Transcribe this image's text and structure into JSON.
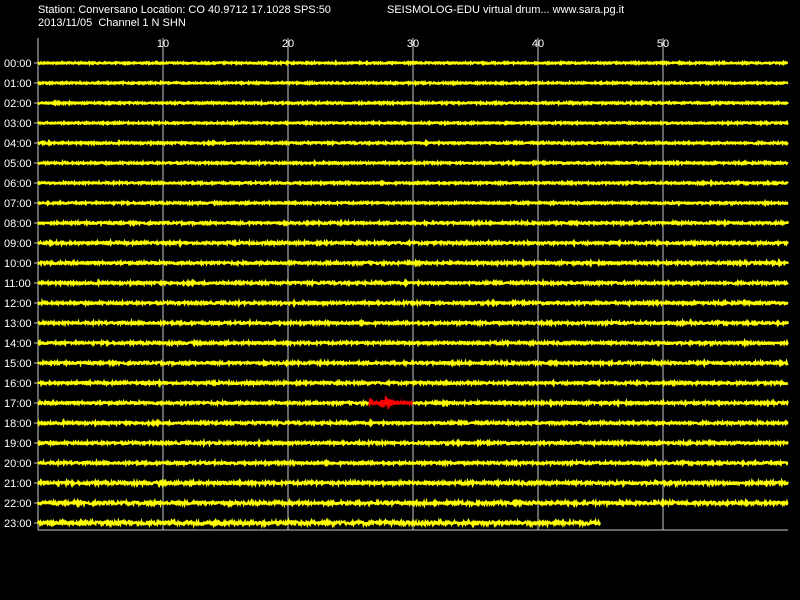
{
  "header": {
    "station_line": "Station: Conversano Location: CO 40.9712 17.1028 SPS:50",
    "app_line": "SEISMOLOG-EDU virtual drum... www.sara.pg.it",
    "date_line": "2013/11/05  Channel 1 N SHN"
  },
  "chart_data": {
    "type": "line",
    "title": "",
    "xlabel": "",
    "ylabel": "",
    "x_unit": "minutes",
    "xlim": [
      0,
      60
    ],
    "x_ticks": [
      10,
      20,
      30,
      40,
      50
    ],
    "grid": true,
    "hours": [
      "00:00",
      "01:00",
      "02:00",
      "03:00",
      "04:00",
      "05:00",
      "06:00",
      "07:00",
      "08:00",
      "09:00",
      "10:00",
      "11:00",
      "12:00",
      "13:00",
      "14:00",
      "15:00",
      "16:00",
      "17:00",
      "18:00",
      "19:00",
      "20:00",
      "21:00",
      "22:00",
      "23:00"
    ],
    "trace_end_minute": [
      60,
      60,
      60,
      60,
      60,
      60,
      60,
      60,
      60,
      60,
      60,
      60,
      60,
      60,
      60,
      60,
      60,
      60,
      60,
      60,
      60,
      60,
      60,
      45
    ],
    "noise_level": [
      0.7,
      0.7,
      0.75,
      0.7,
      0.8,
      0.8,
      0.8,
      0.8,
      0.9,
      1.0,
      1.0,
      1.0,
      1.0,
      1.0,
      1.0,
      1.0,
      1.0,
      1.0,
      1.0,
      1.0,
      1.0,
      1.2,
      1.3,
      1.6
    ],
    "colors": {
      "background": "#000000",
      "trace": "#ffff00",
      "event": "#ff0000",
      "grid": "#c8c8c8",
      "text": "#ffffff"
    },
    "events": [
      {
        "hour": "17:00",
        "start_minute": 26.5,
        "peak_minute": 27.8,
        "end_minute": 30.0,
        "max_amplitude": 10
      }
    ]
  }
}
